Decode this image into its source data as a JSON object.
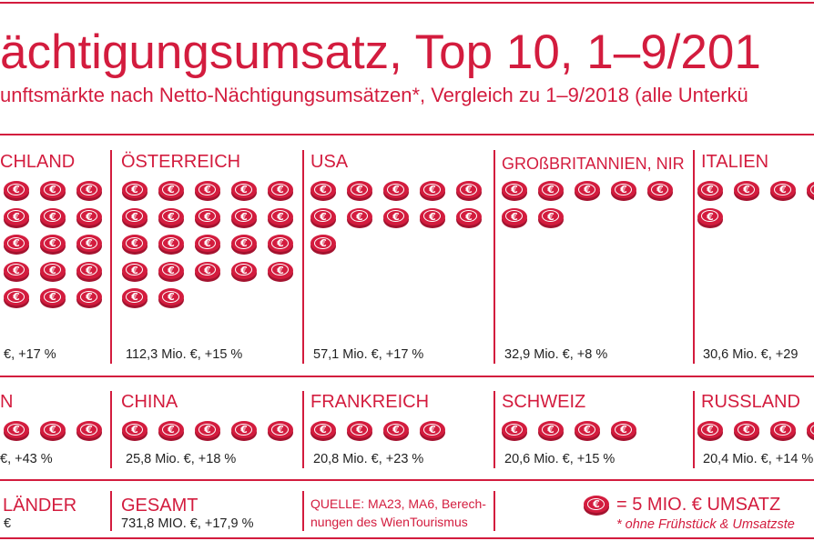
{
  "colors": {
    "accent": "#d31c3e",
    "coin_edge": "#a3132f",
    "text": "#222222",
    "background": "#ffffff"
  },
  "chart_data": {
    "type": "bar",
    "title": "ächtigungsumsatz, Top 10, 1–9/201",
    "subtitle": "unftsmärkte nach Netto-Nächtigungsumsätzen*, Vergleich zu 1–9/2018 (alle Unterkü",
    "categories": [
      "CHLAND",
      "ÖSTERREICH",
      "USA",
      "GROßBRITANNIEN, NIR",
      "ITALIEN",
      "N",
      "CHINA",
      "FRANKREICH",
      "SCHWEIZ",
      "RUSSLAND"
    ],
    "values": [
      null,
      112.3,
      57.1,
      32.9,
      30.6,
      null,
      25.8,
      20.8,
      20.6,
      20.4
    ],
    "value_labels": [
      "€, +17 %",
      "112,3 Mio. €, +15 %",
      "57,1 Mio. €, +17 %",
      "32,9 Mio. €, +8 %",
      "30,6 Mio. €, +29",
      "€, +43 %",
      "25,8 Mio. €, +18 %",
      "20,8 Mio. €, +23 %",
      "20,6 Mio. €, +15 %",
      "20,4 Mio. €, +14 %"
    ],
    "coins_per_row": [
      [
        3,
        3,
        3,
        3,
        3
      ],
      [
        5,
        5,
        5,
        5,
        2
      ],
      [
        5,
        5,
        1
      ],
      [
        5,
        2
      ],
      [
        4,
        1
      ],
      [
        3
      ],
      [
        5
      ],
      [
        4
      ],
      [
        4
      ],
      [
        4
      ]
    ]
  },
  "summary": {
    "other_label": "LÄNDER",
    "other_value": "€",
    "total_label": "GESAMT",
    "total_value": "731,8 MIO. €, +17,9 %"
  },
  "source": {
    "line_1": "QUELLE: MA23, MA6, Berech-",
    "line_2": "nungen des WienTourismus"
  },
  "legend": {
    "icon": "euro-coin-icon",
    "coin_symbol": "€",
    "label": "= 5 MIO. € UMSATZ",
    "footnote": "* ohne Frühstück & Umsatzste"
  }
}
